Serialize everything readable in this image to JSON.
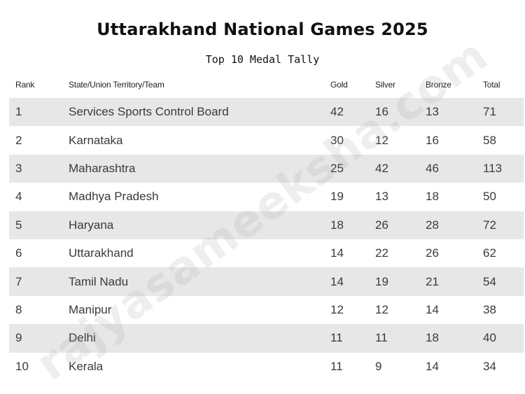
{
  "title": "Uttarakhand National Games 2025",
  "subtitle": "Top 10 Medal Tally",
  "watermark": "rajyasameeksha.com",
  "table": {
    "headers": {
      "rank": "Rank",
      "team": "State/Union Territory/Team",
      "gold": "Gold",
      "silver": "Silver",
      "bronze": "Bronze",
      "total": "Total"
    },
    "rows": [
      {
        "rank": "1",
        "team": "Services Sports Control Board",
        "gold": "42",
        "silver": "16",
        "bronze": "13",
        "total": "71"
      },
      {
        "rank": "2",
        "team": "Karnataka",
        "gold": "30",
        "silver": "12",
        "bronze": "16",
        "total": "58"
      },
      {
        "rank": "3",
        "team": "Maharashtra",
        "gold": "25",
        "silver": "42",
        "bronze": "46",
        "total": "113"
      },
      {
        "rank": "4",
        "team": "Madhya Pradesh",
        "gold": "19",
        "silver": "13",
        "bronze": "18",
        "total": "50"
      },
      {
        "rank": "5",
        "team": "Haryana",
        "gold": "18",
        "silver": "26",
        "bronze": "28",
        "total": "72"
      },
      {
        "rank": "6",
        "team": "Uttarakhand",
        "gold": "14",
        "silver": "22",
        "bronze": "26",
        "total": "62"
      },
      {
        "rank": "7",
        "team": "Tamil Nadu",
        "gold": "14",
        "silver": "19",
        "bronze": "21",
        "total": "54"
      },
      {
        "rank": "8",
        "team": "Manipur",
        "gold": "12",
        "silver": "12",
        "bronze": "14",
        "total": "38"
      },
      {
        "rank": "9",
        "team": "Delhi",
        "gold": "11",
        "silver": "11",
        "bronze": "18",
        "total": "40"
      },
      {
        "rank": "10",
        "team": "Kerala",
        "gold": "11",
        "silver": "9",
        "bronze": "14",
        "total": "34"
      }
    ]
  },
  "colors": {
    "stripe": "#e7e7e7",
    "text": "#3a3a3a",
    "title": "#111111"
  }
}
